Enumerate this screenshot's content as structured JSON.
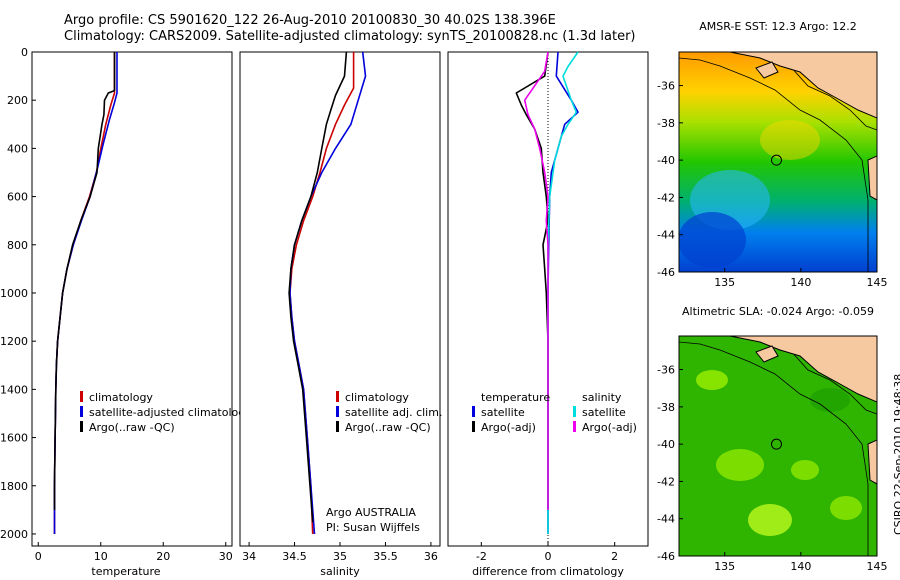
{
  "header": {
    "line1": "Argo profile: CS 5901620_122 26-Aug-2010 20100830_30 40.02S 138.396E",
    "line2": "Climatology: CARS2009. Satellite-adjusted climatology: synTS_20100828.nc (1.3d later)"
  },
  "side_stamp": "CSIRO 22-Sep-2010 19:48:38",
  "colors": {
    "climatology": "#cc0000",
    "satellite": "#0000dd",
    "argo": "#000000",
    "satellite_salinity": "#00dddd",
    "argo_salinity_adj": "#ee00ee",
    "land": "#f7c9a0"
  },
  "chart_data": [
    {
      "type": "line",
      "xlabel": "temperature",
      "ylabel": "",
      "xlim": [
        -1,
        31
      ],
      "ylim": [
        2050,
        0
      ],
      "xticks": [
        0,
        10,
        20,
        30
      ],
      "yticks": [
        0,
        200,
        400,
        600,
        800,
        1000,
        1200,
        1400,
        1600,
        1800,
        2000
      ],
      "legend": [
        "climatology",
        "satellite-adjusted climatology",
        "Argo(..raw -QC)"
      ],
      "legend_position": "lower-left",
      "series": [
        {
          "name": "climatology",
          "color": "#cc0000",
          "points": [
            [
              12.2,
              0
            ],
            [
              12.2,
              170
            ],
            [
              11.6,
              220
            ],
            [
              10.8,
              300
            ],
            [
              10.0,
              400
            ],
            [
              9.3,
              500
            ],
            [
              8.2,
              600
            ],
            [
              6.8,
              700
            ],
            [
              5.6,
              800
            ],
            [
              4.6,
              900
            ],
            [
              3.9,
              1000
            ],
            [
              3.5,
              1100
            ],
            [
              3.1,
              1200
            ],
            [
              2.9,
              1300
            ],
            [
              2.8,
              1400
            ],
            [
              2.7,
              1600
            ],
            [
              2.6,
              1800
            ],
            [
              2.6,
              2000
            ]
          ]
        },
        {
          "name": "satellite-adjusted climatology",
          "color": "#0000dd",
          "points": [
            [
              12.6,
              0
            ],
            [
              12.6,
              170
            ],
            [
              12.2,
              210
            ],
            [
              11.4,
              280
            ],
            [
              10.4,
              380
            ],
            [
              9.5,
              480
            ],
            [
              8.3,
              600
            ],
            [
              6.9,
              700
            ],
            [
              5.6,
              800
            ],
            [
              4.6,
              900
            ],
            [
              3.9,
              1000
            ],
            [
              3.5,
              1100
            ],
            [
              3.1,
              1200
            ],
            [
              2.9,
              1300
            ],
            [
              2.8,
              1400
            ],
            [
              2.7,
              1600
            ],
            [
              2.6,
              1800
            ],
            [
              2.6,
              2000
            ]
          ]
        },
        {
          "name": "Argo(..raw -QC)",
          "color": "#000000",
          "points": [
            [
              12.2,
              0
            ],
            [
              12.2,
              160
            ],
            [
              11.2,
              170
            ],
            [
              10.6,
              200
            ],
            [
              10.5,
              260
            ],
            [
              10.2,
              300
            ],
            [
              9.6,
              400
            ],
            [
              9.4,
              500
            ],
            [
              8.3,
              600
            ],
            [
              6.8,
              700
            ],
            [
              5.5,
              800
            ],
            [
              4.6,
              900
            ],
            [
              3.9,
              1000
            ],
            [
              3.5,
              1100
            ],
            [
              3.1,
              1200
            ],
            [
              2.9,
              1300
            ],
            [
              2.8,
              1400
            ],
            [
              2.7,
              1600
            ],
            [
              2.6,
              1800
            ],
            [
              2.6,
              1900
            ]
          ]
        }
      ]
    },
    {
      "type": "line",
      "xlabel": "salinity",
      "xlim": [
        33.9,
        36.1
      ],
      "ylim": [
        2050,
        0
      ],
      "xticks": [
        34,
        34.5,
        35,
        35.5,
        36
      ],
      "legend": [
        "climatology",
        "satellite adj. clim.",
        "Argo(..raw -QC)"
      ],
      "legend_position": "lower-right",
      "annotation": [
        "Argo AUSTRALIA",
        "PI: Susan Wijffels"
      ],
      "series": [
        {
          "name": "climatology",
          "color": "#cc0000",
          "points": [
            [
              35.15,
              0
            ],
            [
              35.15,
              150
            ],
            [
              35.05,
              220
            ],
            [
              34.95,
              300
            ],
            [
              34.85,
              400
            ],
            [
              34.78,
              500
            ],
            [
              34.7,
              600
            ],
            [
              34.6,
              700
            ],
            [
              34.52,
              800
            ],
            [
              34.47,
              900
            ],
            [
              34.45,
              1000
            ],
            [
              34.47,
              1100
            ],
            [
              34.5,
              1200
            ],
            [
              34.55,
              1300
            ],
            [
              34.6,
              1400
            ],
            [
              34.64,
              1600
            ],
            [
              34.68,
              1800
            ],
            [
              34.7,
              2000
            ]
          ]
        },
        {
          "name": "satellite adj. clim.",
          "color": "#0000dd",
          "points": [
            [
              35.25,
              0
            ],
            [
              35.28,
              100
            ],
            [
              35.2,
              200
            ],
            [
              35.12,
              300
            ],
            [
              34.95,
              400
            ],
            [
              34.8,
              500
            ],
            [
              34.68,
              600
            ],
            [
              34.58,
              700
            ],
            [
              34.5,
              800
            ],
            [
              34.46,
              900
            ],
            [
              34.45,
              1000
            ],
            [
              34.47,
              1100
            ],
            [
              34.5,
              1200
            ],
            [
              34.55,
              1300
            ],
            [
              34.6,
              1400
            ],
            [
              34.64,
              1600
            ],
            [
              34.68,
              1800
            ],
            [
              34.72,
              2000
            ]
          ]
        },
        {
          "name": "Argo(..raw -QC)",
          "color": "#000000",
          "points": [
            [
              35.07,
              0
            ],
            [
              35.05,
              100
            ],
            [
              34.95,
              180
            ],
            [
              34.9,
              240
            ],
            [
              34.85,
              300
            ],
            [
              34.8,
              400
            ],
            [
              34.75,
              500
            ],
            [
              34.68,
              600
            ],
            [
              34.58,
              700
            ],
            [
              34.5,
              800
            ],
            [
              34.46,
              900
            ],
            [
              34.44,
              1000
            ],
            [
              34.46,
              1100
            ],
            [
              34.49,
              1200
            ],
            [
              34.54,
              1300
            ],
            [
              34.59,
              1400
            ],
            [
              34.63,
              1600
            ],
            [
              34.67,
              1800
            ],
            [
              34.7,
              1950
            ]
          ]
        }
      ]
    },
    {
      "type": "line",
      "xlabel": "difference from climatology",
      "xlim": [
        -3,
        3
      ],
      "ylim": [
        2050,
        0
      ],
      "xticks": [
        -2,
        0,
        2
      ],
      "legend_columns": [
        {
          "header": "temperature",
          "entries": [
            "satellite",
            "Argo(-adj)"
          ]
        },
        {
          "header": "salinity",
          "entries": [
            "satellite",
            "Argo(-adj)"
          ]
        }
      ],
      "legend_position": "lower-left",
      "series": [
        {
          "name": "temperature satellite",
          "color": "#0000dd",
          "points": [
            [
              0.3,
              0
            ],
            [
              0.25,
              100
            ],
            [
              0.7,
              200
            ],
            [
              0.9,
              250
            ],
            [
              0.5,
              300
            ],
            [
              0.3,
              400
            ],
            [
              0.1,
              500
            ],
            [
              0.05,
              600
            ],
            [
              0.02,
              800
            ],
            [
              0,
              1000
            ],
            [
              0,
              1400
            ],
            [
              0,
              1800
            ],
            [
              0,
              2000
            ]
          ]
        },
        {
          "name": "temperature Argo(-adj)",
          "color": "#000000",
          "points": [
            [
              0,
              0
            ],
            [
              -0.1,
              100
            ],
            [
              -0.95,
              170
            ],
            [
              -0.8,
              220
            ],
            [
              -0.65,
              260
            ],
            [
              -0.4,
              320
            ],
            [
              -0.2,
              400
            ],
            [
              -0.15,
              500
            ],
            [
              -0.05,
              600
            ],
            [
              0,
              700
            ],
            [
              -0.15,
              800
            ],
            [
              -0.1,
              900
            ],
            [
              -0.05,
              1000
            ],
            [
              0,
              1200
            ],
            [
              0,
              1500
            ],
            [
              0,
              1800
            ],
            [
              0,
              1900
            ]
          ]
        },
        {
          "name": "salinity satellite",
          "color": "#00dddd",
          "points": [
            [
              0.9,
              0
            ],
            [
              0.6,
              60
            ],
            [
              0.45,
              100
            ],
            [
              0.7,
              200
            ],
            [
              0.85,
              250
            ],
            [
              0.6,
              300
            ],
            [
              0.4,
              350
            ],
            [
              0.2,
              450
            ],
            [
              0.05,
              600
            ],
            [
              0,
              800
            ],
            [
              0,
              1200
            ],
            [
              0,
              1600
            ],
            [
              0,
              2000
            ]
          ]
        },
        {
          "name": "salinity Argo(-adj)",
          "color": "#ee00ee",
          "points": [
            [
              0,
              0
            ],
            [
              -0.1,
              80
            ],
            [
              -0.7,
              200
            ],
            [
              -0.6,
              260
            ],
            [
              -0.4,
              320
            ],
            [
              -0.25,
              400
            ],
            [
              -0.1,
              500
            ],
            [
              0,
              600
            ],
            [
              -0.05,
              700
            ],
            [
              0,
              800
            ],
            [
              0,
              1200
            ],
            [
              0,
              1600
            ],
            [
              0,
              1900
            ]
          ]
        }
      ]
    }
  ],
  "maps": [
    {
      "title": "AMSR-E SST: 12.3 Argo: 12.2",
      "xticks": [
        135,
        140,
        145
      ],
      "yticks": [
        -36,
        -38,
        -40,
        -42,
        -44,
        -46
      ],
      "xlim": [
        132,
        145
      ],
      "ylim": [
        -46,
        -34.2
      ],
      "marker": [
        138.4,
        -40.0
      ]
    },
    {
      "title": "Altimetric SLA: -0.024 Argo: -0.059",
      "xticks": [
        135,
        140,
        145
      ],
      "yticks": [
        -36,
        -38,
        -40,
        -42,
        -44,
        -46
      ],
      "xlim": [
        132,
        145
      ],
      "ylim": [
        -46,
        -34.2
      ],
      "marker": [
        138.4,
        -40.0
      ]
    }
  ]
}
